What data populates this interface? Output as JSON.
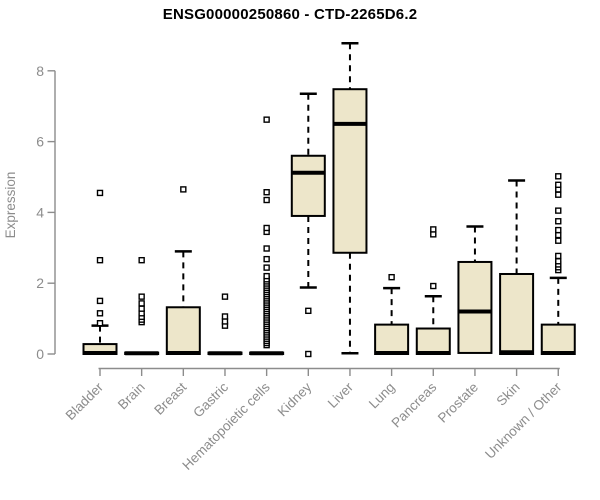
{
  "page": {
    "background": "#ffffff"
  },
  "chart_data": {
    "type": "boxplot",
    "title": "ENSG00000250860 - CTD-2265D6.2",
    "ylabel": "Expression",
    "xlabel": "",
    "y_ticks": [
      0,
      2,
      4,
      6,
      8
    ],
    "ylim": [
      0,
      8.8
    ],
    "grid": false,
    "legend": "none",
    "colors": {
      "box_fill": "#ede6ca",
      "box_stroke": "#000000",
      "median": "#000000",
      "whisker": "#000000",
      "outlier_fill": "#ffffff",
      "outlier_stroke": "#000000",
      "axis": "#8c8c8c",
      "tick_text": "#8c8c8c",
      "title_text": "#000000"
    },
    "categories": [
      "Bladder",
      "Brain",
      "Breast",
      "Gastric",
      "Hematopoietic cells",
      "Kidney",
      "Liver",
      "Lung",
      "Pancreas",
      "Prostate",
      "Skin",
      "Unknown / Other"
    ],
    "series": [
      {
        "name": "Bladder",
        "q1": 0,
        "median": 0.03,
        "q3": 0.28,
        "whisker_low": 0,
        "whisker_high": 0.8,
        "outliers": [
          0.87,
          1.15,
          1.5,
          2.65,
          4.55
        ]
      },
      {
        "name": "Brain",
        "q1": 0,
        "median": 0.02,
        "q3": 0.04,
        "whisker_low": 0,
        "whisker_high": 0.05,
        "outliers": [
          0.9,
          0.97,
          1.05,
          1.15,
          1.28,
          1.43,
          1.62,
          2.65
        ]
      },
      {
        "name": "Breast",
        "q1": 0,
        "median": 0.03,
        "q3": 1.32,
        "whisker_low": 0,
        "whisker_high": 2.9,
        "outliers": [
          4.65
        ]
      },
      {
        "name": "Gastric",
        "q1": 0,
        "median": 0.02,
        "q3": 0.04,
        "whisker_low": 0,
        "whisker_high": 0.05,
        "outliers": [
          0.8,
          0.92,
          1.06,
          1.62
        ]
      },
      {
        "name": "Hematopoietic cells",
        "q1": 0,
        "median": 0.02,
        "q3": 0.04,
        "whisker_low": 0,
        "whisker_high": 0.05,
        "outliers": [
          0.25,
          0.31,
          0.37,
          0.43,
          0.49,
          0.55,
          0.61,
          0.67,
          0.73,
          0.79,
          0.85,
          0.91,
          0.97,
          1.03,
          1.09,
          1.15,
          1.21,
          1.27,
          1.33,
          1.39,
          1.45,
          1.51,
          1.57,
          1.63,
          1.69,
          1.75,
          1.81,
          1.87,
          1.93,
          1.99,
          2.05,
          2.11,
          2.2,
          2.44,
          2.68,
          2.98,
          3.45,
          3.56,
          4.35,
          4.57,
          6.62
        ]
      },
      {
        "name": "Kidney",
        "q1": 3.9,
        "median": 5.12,
        "q3": 5.6,
        "whisker_low": 1.88,
        "whisker_high": 7.35,
        "outliers": [
          1.22,
          0.0
        ]
      },
      {
        "name": "Liver",
        "q1": 2.86,
        "median": 6.5,
        "q3": 7.48,
        "whisker_low": 0.02,
        "whisker_high": 8.78,
        "outliers": []
      },
      {
        "name": "Lung",
        "q1": 0,
        "median": 0.03,
        "q3": 0.83,
        "whisker_low": 0,
        "whisker_high": 1.86,
        "outliers": [
          2.17
        ]
      },
      {
        "name": "Pancreas",
        "q1": 0,
        "median": 0.03,
        "q3": 0.72,
        "whisker_low": 0,
        "whisker_high": 1.63,
        "outliers": [
          1.92,
          3.38,
          3.52
        ]
      },
      {
        "name": "Prostate",
        "q1": 0.03,
        "median": 1.2,
        "q3": 2.6,
        "whisker_low": 0,
        "whisker_high": 3.6,
        "outliers": []
      },
      {
        "name": "Skin",
        "q1": 0,
        "median": 0.05,
        "q3": 2.26,
        "whisker_low": 0,
        "whisker_high": 4.9,
        "outliers": []
      },
      {
        "name": "Unknown / Other",
        "q1": 0,
        "median": 0.03,
        "q3": 0.83,
        "whisker_low": 0,
        "whisker_high": 2.15,
        "outliers": [
          2.37,
          2.45,
          2.53,
          2.62,
          2.77,
          3.2,
          3.36,
          3.5,
          3.75,
          4.05,
          4.5,
          4.65,
          4.78,
          5.02
        ]
      }
    ]
  }
}
